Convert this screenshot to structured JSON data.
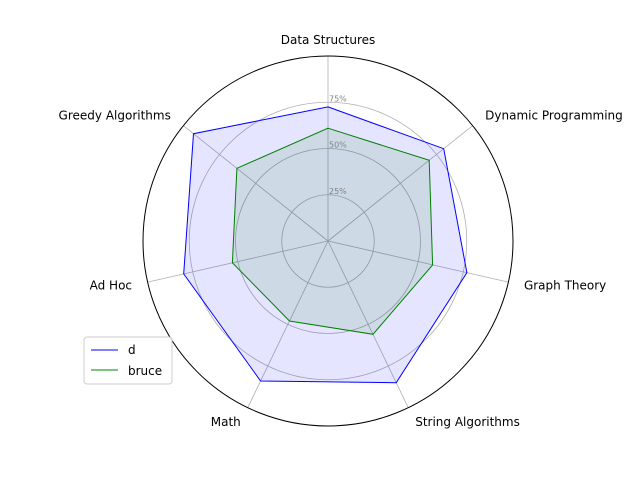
{
  "chart_data": {
    "type": "radar",
    "categories": [
      "Data Structures",
      "Dynamic Programming",
      "Graph Theory",
      "String Algorithms",
      "Math",
      "Ad Hoc",
      "Greedy Algorithms"
    ],
    "series": [
      {
        "name": "d",
        "values": [
          0.725,
          0.8,
          0.77,
          0.85,
          0.84,
          0.8,
          0.93
        ],
        "color": "#0000ff",
        "fill": "#0000ff",
        "fill_opacity": 0.1
      },
      {
        "name": "bruce",
        "values": [
          0.61,
          0.7,
          0.58,
          0.56,
          0.48,
          0.53,
          0.63
        ],
        "color": "#008000",
        "fill": "#008000",
        "fill_opacity": 0.1
      }
    ],
    "rlim": [
      0,
      1
    ],
    "radial_ticks": [
      0.25,
      0.5,
      0.75
    ],
    "radial_tick_labels": [
      "25%",
      "50%",
      "75%"
    ],
    "grid": true,
    "legend_position": "lower-left"
  }
}
